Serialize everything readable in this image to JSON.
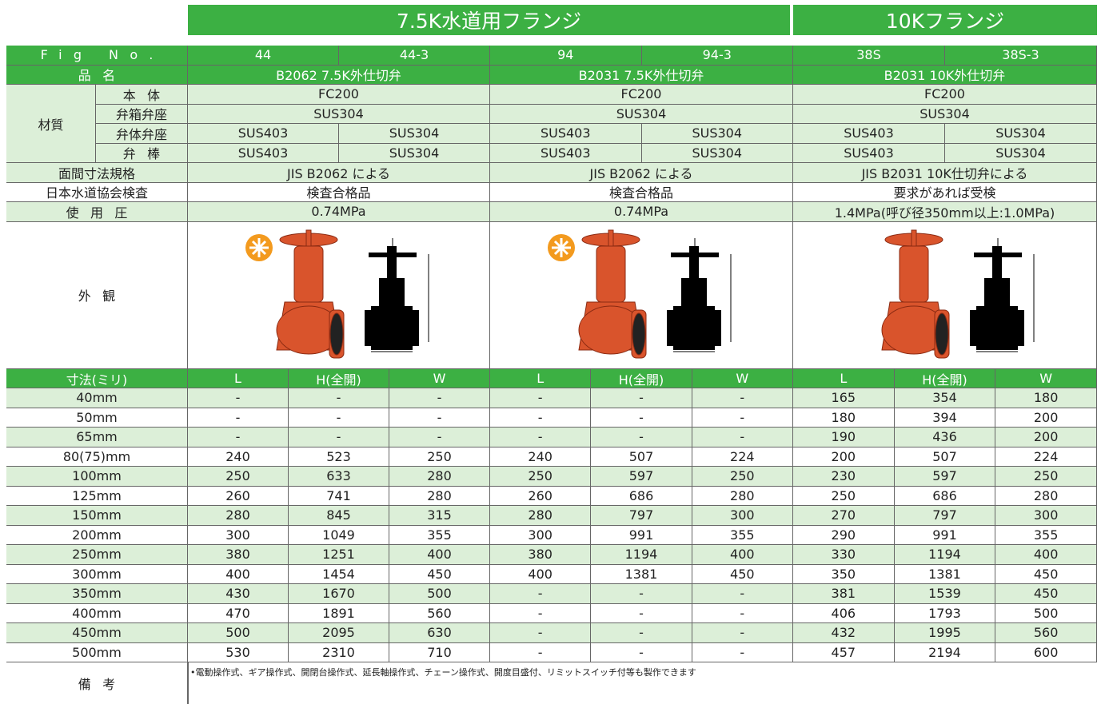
{
  "header": {
    "groups": [
      "7.5K水道用フランジ",
      "10Kフランジ"
    ]
  },
  "spec_table": {
    "row_labels": {
      "fig_no": "Fig No.",
      "name": "品名",
      "material": "材質",
      "body": "本体",
      "seat_box": "弁箱弁座",
      "seat_disc": "弁体弁座",
      "stem": "弁棒",
      "face": "面間寸法規格",
      "inspection": "日本水道協会検査",
      "pressure": "使用圧",
      "appearance": "外観"
    },
    "products": [
      {
        "fig": [
          "44",
          "44-3"
        ],
        "name": "B2062 7.5K外仕切弁",
        "body": "FC200",
        "seat_box": "SUS304",
        "seat_disc": [
          "SUS403",
          "SUS304"
        ],
        "stem": [
          "SUS403",
          "SUS304"
        ],
        "face": "JIS B2062 による",
        "inspection": "検査合格品",
        "pressure": "0.74MPa"
      },
      {
        "fig": [
          "94",
          "94-3"
        ],
        "name": "B2031 7.5K外仕切弁",
        "body": "FC200",
        "seat_box": "SUS304",
        "seat_disc": [
          "SUS403",
          "SUS304"
        ],
        "stem": [
          "SUS403",
          "SUS304"
        ],
        "face": "JIS B2062 による",
        "inspection": "検査合格品",
        "pressure": "0.74MPa"
      },
      {
        "fig": [
          "38S",
          "38S-3"
        ],
        "name": "B2031 10K外仕切弁",
        "body": "FC200",
        "seat_box": "SUS304",
        "seat_disc": [
          "SUS403",
          "SUS304"
        ],
        "stem": [
          "SUS403",
          "SUS304"
        ],
        "face": "JIS B2031 10K仕切弁による",
        "inspection": "要求があれば受検",
        "pressure": "1.4MPa(呼び径350mm以上:1.0MPa)"
      }
    ]
  },
  "dimension_table": {
    "header": "寸法(ミリ)",
    "columns": [
      "L",
      "H(全開)",
      "W",
      "L",
      "H(全開)",
      "W",
      "L",
      "H(全開)",
      "W"
    ],
    "rows": [
      {
        "size": "40mm",
        "values": [
          "-",
          "-",
          "-",
          "-",
          "-",
          "-",
          165,
          354,
          180
        ]
      },
      {
        "size": "50mm",
        "values": [
          "-",
          "-",
          "-",
          "-",
          "-",
          "-",
          180,
          394,
          200
        ]
      },
      {
        "size": "65mm",
        "values": [
          "-",
          "-",
          "-",
          "-",
          "-",
          "-",
          190,
          436,
          200
        ]
      },
      {
        "size": "80(75)mm",
        "values": [
          240,
          523,
          250,
          240,
          507,
          224,
          200,
          507,
          224
        ]
      },
      {
        "size": "100mm",
        "values": [
          250,
          633,
          280,
          250,
          597,
          250,
          230,
          597,
          250
        ]
      },
      {
        "size": "125mm",
        "values": [
          260,
          741,
          280,
          260,
          686,
          280,
          250,
          686,
          280
        ]
      },
      {
        "size": "150mm",
        "values": [
          280,
          845,
          315,
          280,
          797,
          300,
          270,
          797,
          300
        ]
      },
      {
        "size": "200mm",
        "values": [
          300,
          1049,
          355,
          300,
          991,
          355,
          290,
          991,
          355
        ]
      },
      {
        "size": "250mm",
        "values": [
          380,
          1251,
          400,
          380,
          1194,
          400,
          330,
          1194,
          400
        ]
      },
      {
        "size": "300mm",
        "values": [
          400,
          1454,
          450,
          400,
          1381,
          450,
          350,
          1381,
          450
        ]
      },
      {
        "size": "350mm",
        "values": [
          430,
          1670,
          500,
          "-",
          "-",
          "-",
          381,
          1539,
          450
        ]
      },
      {
        "size": "400mm",
        "values": [
          470,
          1891,
          560,
          "-",
          "-",
          "-",
          406,
          1793,
          500
        ]
      },
      {
        "size": "450mm",
        "values": [
          500,
          2095,
          630,
          "-",
          "-",
          "-",
          432,
          1995,
          560
        ]
      },
      {
        "size": "500mm",
        "values": [
          530,
          2310,
          710,
          "-",
          "-",
          "-",
          457,
          2194,
          600
        ]
      }
    ]
  },
  "remarks": {
    "label": "備考",
    "text": "•電動操作式、ギア操作式、開閉台操作式、延長軸操作式、チェーン操作式、開度目盛付、リミットスイッチ付等も製作できます"
  }
}
